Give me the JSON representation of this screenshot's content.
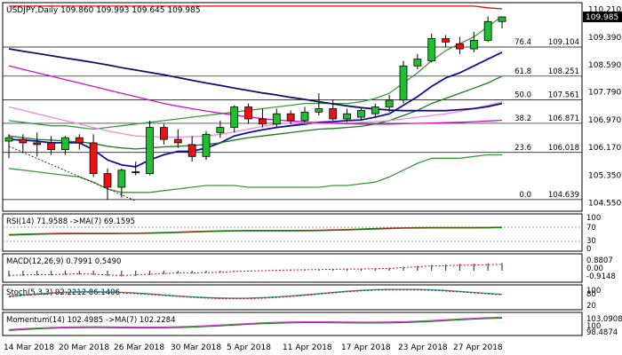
{
  "chart_data": {
    "type": "candlestick",
    "header": {
      "symbol": "USDJPY,Daily",
      "ohlc": "109.860 109.993 109.645 109.985"
    },
    "price_axis": {
      "range": [
        104.35,
        110.35
      ],
      "ticks": [
        "110.210",
        "109.390",
        "108.590",
        "107.790",
        "106.970",
        "106.170",
        "105.350",
        "104.550"
      ],
      "last_price": "109.985"
    },
    "x_labels": [
      "14 Mar 2018",
      "20 Mar 2018",
      "26 Mar 2018",
      "30 Mar 2018",
      "5 Apr 2018",
      "11 Apr 2018",
      "17 Apr 2018",
      "23 Apr 2018",
      "27 Apr 2018"
    ],
    "candles": [
      {
        "o": 106.35,
        "h": 106.55,
        "l": 105.85,
        "c": 106.45
      },
      {
        "o": 106.4,
        "h": 106.55,
        "l": 106.0,
        "c": 106.3
      },
      {
        "o": 106.3,
        "h": 106.6,
        "l": 105.9,
        "c": 106.25
      },
      {
        "o": 106.3,
        "h": 106.5,
        "l": 105.95,
        "c": 106.1
      },
      {
        "o": 106.1,
        "h": 106.5,
        "l": 105.95,
        "c": 106.45
      },
      {
        "o": 106.45,
        "h": 106.55,
        "l": 106.1,
        "c": 106.3
      },
      {
        "o": 106.3,
        "h": 106.55,
        "l": 105.3,
        "c": 105.4
      },
      {
        "o": 105.4,
        "h": 105.55,
        "l": 104.65,
        "c": 105.0
      },
      {
        "o": 105.0,
        "h": 105.55,
        "l": 104.7,
        "c": 105.5
      },
      {
        "o": 105.45,
        "h": 105.75,
        "l": 105.35,
        "c": 105.45
      },
      {
        "o": 105.4,
        "h": 106.95,
        "l": 105.35,
        "c": 106.75
      },
      {
        "o": 106.75,
        "h": 106.85,
        "l": 106.25,
        "c": 106.4
      },
      {
        "o": 106.4,
        "h": 106.7,
        "l": 106.15,
        "c": 106.3
      },
      {
        "o": 106.25,
        "h": 106.5,
        "l": 105.75,
        "c": 105.9
      },
      {
        "o": 105.9,
        "h": 106.65,
        "l": 105.8,
        "c": 106.55
      },
      {
        "o": 106.6,
        "h": 106.95,
        "l": 106.45,
        "c": 106.75
      },
      {
        "o": 106.75,
        "h": 107.4,
        "l": 106.6,
        "c": 107.35
      },
      {
        "o": 107.35,
        "h": 107.45,
        "l": 106.85,
        "c": 107.0
      },
      {
        "o": 107.0,
        "h": 107.3,
        "l": 106.75,
        "c": 106.85
      },
      {
        "o": 106.85,
        "h": 107.3,
        "l": 106.75,
        "c": 107.15
      },
      {
        "o": 107.15,
        "h": 107.25,
        "l": 106.85,
        "c": 106.95
      },
      {
        "o": 106.95,
        "h": 107.35,
        "l": 106.9,
        "c": 107.2
      },
      {
        "o": 107.2,
        "h": 107.75,
        "l": 107.1,
        "c": 107.3
      },
      {
        "o": 107.3,
        "h": 107.55,
        "l": 106.95,
        "c": 107.0
      },
      {
        "o": 107.0,
        "h": 107.3,
        "l": 106.9,
        "c": 107.15
      },
      {
        "o": 107.05,
        "h": 107.35,
        "l": 106.95,
        "c": 107.25
      },
      {
        "o": 107.15,
        "h": 107.45,
        "l": 107.05,
        "c": 107.35
      },
      {
        "o": 107.35,
        "h": 107.7,
        "l": 107.2,
        "c": 107.55
      },
      {
        "o": 107.55,
        "h": 108.7,
        "l": 107.45,
        "c": 108.55
      },
      {
        "o": 108.55,
        "h": 108.9,
        "l": 108.45,
        "c": 108.75
      },
      {
        "o": 108.7,
        "h": 109.5,
        "l": 108.65,
        "c": 109.35
      },
      {
        "o": 109.35,
        "h": 109.45,
        "l": 109.1,
        "c": 109.25
      },
      {
        "o": 109.2,
        "h": 109.4,
        "l": 108.9,
        "c": 109.05
      },
      {
        "o": 109.05,
        "h": 109.55,
        "l": 108.95,
        "c": 109.3
      },
      {
        "o": 109.3,
        "h": 110.0,
        "l": 109.25,
        "c": 109.85
      },
      {
        "o": 109.85,
        "h": 109.99,
        "l": 109.65,
        "c": 109.985
      }
    ],
    "fibonacci": [
      {
        "label": "76.4",
        "value": "109.104",
        "y": 109.104
      },
      {
        "label": "61.8",
        "value": "108.251",
        "y": 108.251
      },
      {
        "label": "50.0",
        "value": "107.561",
        "y": 107.561
      },
      {
        "label": "38.2",
        "value": "106.871",
        "y": 106.871
      },
      {
        "label": "23.6",
        "value": "106.018",
        "y": 106.018
      },
      {
        "label": "0.0",
        "value": "104.639",
        "y": 104.639
      }
    ],
    "series": [
      {
        "name": "bollinger-upper",
        "color": "#3a9a3a",
        "values": [
          106.95,
          106.9,
          106.85,
          106.8,
          106.8,
          106.75,
          106.7,
          106.75,
          106.8,
          106.85,
          106.9,
          106.95,
          107.0,
          107.05,
          107.1,
          107.15,
          107.2,
          107.25,
          107.3,
          107.35,
          107.4,
          107.45,
          107.45,
          107.45,
          107.45,
          107.5,
          107.6,
          107.75,
          108.05,
          108.35,
          108.7,
          109.0,
          109.2,
          109.4,
          109.7,
          110.0
        ]
      },
      {
        "name": "bollinger-lower",
        "color": "#3a9a3a",
        "values": [
          105.55,
          105.5,
          105.45,
          105.4,
          105.35,
          105.3,
          105.15,
          104.95,
          104.85,
          104.85,
          104.85,
          104.9,
          104.95,
          105.0,
          105.05,
          105.05,
          105.05,
          105.0,
          105.0,
          105.0,
          105.0,
          105.0,
          105.0,
          105.05,
          105.05,
          105.1,
          105.15,
          105.3,
          105.5,
          105.7,
          105.85,
          105.85,
          105.85,
          105.9,
          105.95,
          105.95
        ]
      },
      {
        "name": "ema-fast",
        "color": "#1010a0",
        "values": [
          106.4,
          106.38,
          106.35,
          106.3,
          106.3,
          106.3,
          106.1,
          105.8,
          105.65,
          105.6,
          105.8,
          105.95,
          106.05,
          106.05,
          106.15,
          106.3,
          106.5,
          106.6,
          106.68,
          106.75,
          106.8,
          106.85,
          106.9,
          106.92,
          106.95,
          106.97,
          107.05,
          107.15,
          107.4,
          107.65,
          107.95,
          108.2,
          108.35,
          108.55,
          108.75,
          108.95
        ]
      },
      {
        "name": "sma-mid",
        "color": "#1a7a1a",
        "values": [
          106.5,
          106.45,
          106.4,
          106.38,
          106.35,
          106.33,
          106.28,
          106.2,
          106.15,
          106.12,
          106.15,
          106.18,
          106.2,
          106.22,
          106.25,
          106.3,
          106.38,
          106.45,
          106.5,
          106.55,
          106.6,
          106.65,
          106.7,
          106.72,
          106.75,
          106.78,
          106.85,
          106.95,
          107.1,
          107.25,
          107.45,
          107.6,
          107.75,
          107.9,
          108.05,
          108.25
        ]
      },
      {
        "name": "pink",
        "color": "#ee88dd",
        "values": [
          107.35,
          107.25,
          107.15,
          107.05,
          106.95,
          106.85,
          106.75,
          106.65,
          106.57,
          106.5,
          106.48,
          106.47,
          106.47,
          106.48,
          106.5,
          106.55,
          106.62,
          106.7,
          106.78,
          106.85,
          106.88,
          106.88,
          106.88,
          106.88,
          106.88,
          106.9,
          106.92,
          106.95,
          107.0,
          107.05,
          107.1,
          107.15,
          107.22,
          107.3,
          107.4,
          107.5
        ]
      },
      {
        "name": "navy-long",
        "color": "#101070",
        "values": [
          109.05,
          108.98,
          108.92,
          108.85,
          108.78,
          108.72,
          108.65,
          108.58,
          108.5,
          108.43,
          108.36,
          108.29,
          108.21,
          108.13,
          108.05,
          107.98,
          107.9,
          107.83,
          107.76,
          107.7,
          107.63,
          107.57,
          107.5,
          107.44,
          107.38,
          107.33,
          107.29,
          107.26,
          107.24,
          107.24,
          107.24,
          107.24,
          107.27,
          107.3,
          107.36,
          107.45
        ]
      },
      {
        "name": "magenta-long",
        "color": "#cc10cc",
        "values": [
          108.55,
          108.45,
          108.35,
          108.25,
          108.15,
          108.05,
          107.95,
          107.85,
          107.75,
          107.65,
          107.55,
          107.45,
          107.37,
          107.3,
          107.23,
          107.17,
          107.11,
          107.06,
          107.01,
          106.97,
          106.94,
          106.91,
          106.89,
          106.87,
          106.86,
          106.85,
          106.85,
          106.85,
          106.86,
          106.87,
          106.88,
          106.89,
          106.9,
          106.92,
          106.94,
          106.96
        ]
      },
      {
        "name": "red-long",
        "color": "#cc1010",
        "values": [
          110.3,
          110.3,
          110.3,
          110.3,
          110.3,
          110.3,
          110.3,
          110.3,
          110.3,
          110.3,
          110.3,
          110.3,
          110.3,
          110.3,
          110.3,
          110.3,
          110.3,
          110.3,
          110.3,
          110.3,
          110.3,
          110.3,
          110.3,
          110.3,
          110.3,
          110.3,
          110.3,
          110.3,
          110.3,
          110.3,
          110.3,
          110.3,
          110.3,
          110.3,
          110.25,
          110.22
        ]
      }
    ],
    "panels": {
      "rsi": {
        "title": "RSI(14) 71.9588 ->MA(7) 69.1595",
        "levels": [
          "100",
          "70",
          "30",
          "0"
        ]
      },
      "macd": {
        "title": "MACD(12,26,9) 0.7991 0.5490",
        "levels": [
          "0.8807",
          "0.00",
          "-0.9148"
        ],
        "hist": [
          -0.6,
          -0.55,
          -0.5,
          -0.5,
          -0.45,
          -0.4,
          -0.45,
          -0.55,
          -0.6,
          -0.55,
          -0.45,
          -0.35,
          -0.3,
          -0.3,
          -0.25,
          -0.2,
          -0.1,
          -0.05,
          0.0,
          0.05,
          0.1,
          0.12,
          0.15,
          0.18,
          0.2,
          0.22,
          0.25,
          0.3,
          0.4,
          0.5,
          0.6,
          0.65,
          0.7,
          0.72,
          0.77,
          0.8
        ]
      },
      "stoch": {
        "title": "Stoch(5,3,3) 92.2212 86.1406",
        "levels": [
          "100",
          "80",
          "20"
        ]
      },
      "momentum": {
        "title": "Momentum(14) 102.4985 ->MA(7) 102.2284",
        "levels": [
          "103.0908",
          "100",
          "98.4874"
        ]
      }
    }
  }
}
